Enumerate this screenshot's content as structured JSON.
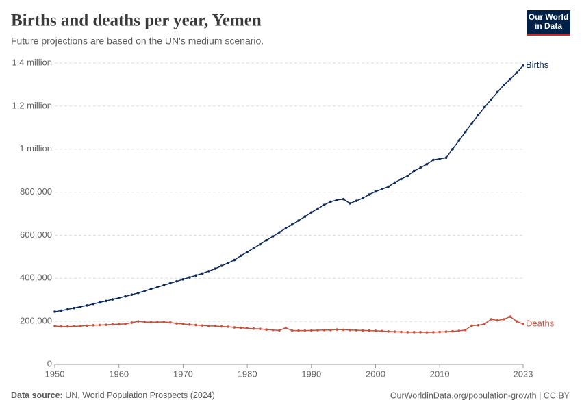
{
  "chart_data": {
    "type": "line",
    "title": "Births and deaths per year, Yemen",
    "subtitle": "Future projections are based on the UN's medium scenario.",
    "logo": [
      "Our World",
      "in Data"
    ],
    "source_label": "Data source:",
    "source": "UN, World Population Prospects (2024)",
    "url": "OurWorldinData.org/population-growth | CC BY",
    "x": [
      1950,
      1951,
      1952,
      1953,
      1954,
      1955,
      1956,
      1957,
      1958,
      1959,
      1960,
      1961,
      1962,
      1963,
      1964,
      1965,
      1966,
      1967,
      1968,
      1969,
      1970,
      1971,
      1972,
      1973,
      1974,
      1975,
      1976,
      1977,
      1978,
      1979,
      1980,
      1981,
      1982,
      1983,
      1984,
      1985,
      1986,
      1987,
      1988,
      1989,
      1990,
      1991,
      1992,
      1993,
      1994,
      1995,
      1996,
      1997,
      1998,
      1999,
      2000,
      2001,
      2002,
      2003,
      2004,
      2005,
      2006,
      2007,
      2008,
      2009,
      2010,
      2011,
      2012,
      2013,
      2014,
      2015,
      2016,
      2017,
      2018,
      2019,
      2020,
      2021,
      2022,
      2023
    ],
    "xlim": [
      1950,
      2023
    ],
    "xticks": [
      1950,
      1960,
      1970,
      1980,
      1990,
      2000,
      2010,
      2023
    ],
    "ylim": [
      0,
      1400000
    ],
    "yticks": [
      0,
      {
        "value": 200000,
        "label": "200,000"
      },
      {
        "value": 400000,
        "label": "400,000"
      },
      {
        "value": 600000,
        "label": "600,000"
      },
      {
        "value": 800000,
        "label": "800,000"
      },
      {
        "value": 1000000,
        "label": "1 million"
      },
      {
        "value": 1200000,
        "label": "1.2 million"
      },
      {
        "value": 1400000,
        "label": "1.4 million"
      }
    ],
    "grid": true,
    "series": [
      {
        "name": "Births",
        "color": "#0d2a5a",
        "values": [
          245000,
          250000,
          256000,
          262000,
          268000,
          274000,
          281000,
          288000,
          295000,
          302000,
          309000,
          316000,
          324000,
          332000,
          341000,
          350000,
          359000,
          368000,
          377000,
          386000,
          395000,
          404000,
          413000,
          422000,
          433000,
          445000,
          458000,
          471000,
          485000,
          505000,
          522000,
          540000,
          558000,
          577000,
          595000,
          614000,
          632000,
          650000,
          668000,
          687000,
          706000,
          724000,
          741000,
          756000,
          764000,
          768000,
          748000,
          760000,
          772000,
          789000,
          803000,
          814000,
          826000,
          845000,
          861000,
          876000,
          899000,
          914000,
          930000,
          950000,
          955000,
          960000,
          1000000,
          1040000,
          1080000,
          1120000,
          1158000,
          1195000,
          1230000,
          1265000,
          1298000,
          1325000,
          1355000,
          1388000
        ]
      },
      {
        "name": "Deaths",
        "color": "#c8513d",
        "values": [
          178000,
          176000,
          176000,
          177000,
          178000,
          180000,
          182000,
          183000,
          184000,
          186000,
          187000,
          188000,
          194000,
          200000,
          197000,
          196000,
          197000,
          197000,
          195000,
          190000,
          188000,
          185000,
          183000,
          181000,
          179000,
          178000,
          176000,
          175000,
          172000,
          170000,
          168000,
          166000,
          165000,
          162000,
          160000,
          158000,
          170000,
          157000,
          157000,
          157000,
          158000,
          159000,
          160000,
          160000,
          162000,
          161000,
          160000,
          159000,
          158000,
          157000,
          156000,
          155000,
          153000,
          152000,
          151000,
          150000,
          150000,
          150000,
          149000,
          150000,
          151000,
          152000,
          154000,
          156000,
          160000,
          180000,
          182000,
          188000,
          210000,
          205000,
          210000,
          222000,
          200000,
          188000
        ]
      }
    ]
  }
}
